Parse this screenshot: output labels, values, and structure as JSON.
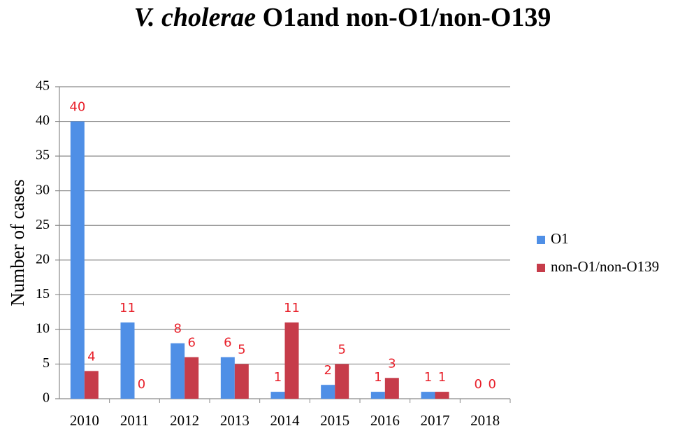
{
  "chart_data": {
    "type": "bar",
    "title_italic": "V. cholerae",
    "title": "O1and non-O1/non-O139",
    "y_label": "Number of cases",
    "categories": [
      "2010",
      "2011",
      "2012",
      "2013",
      "2014",
      "2015",
      "2016",
      "2017",
      "2018"
    ],
    "series": [
      {
        "name": "O1",
        "color": "#4f8fe6",
        "values": [
          40,
          11,
          8,
          6,
          1,
          2,
          1,
          1,
          0
        ]
      },
      {
        "name": "non-O1/non-O139",
        "color": "#c63c4a",
        "values": [
          4,
          0,
          6,
          5,
          11,
          5,
          3,
          1,
          0
        ]
      }
    ],
    "label_color": "#e8202a",
    "ylim": [
      0,
      45
    ],
    "yticks": [
      0,
      5,
      10,
      15,
      20,
      25,
      30,
      35,
      40,
      45
    ],
    "grid": true,
    "legend": "right"
  }
}
